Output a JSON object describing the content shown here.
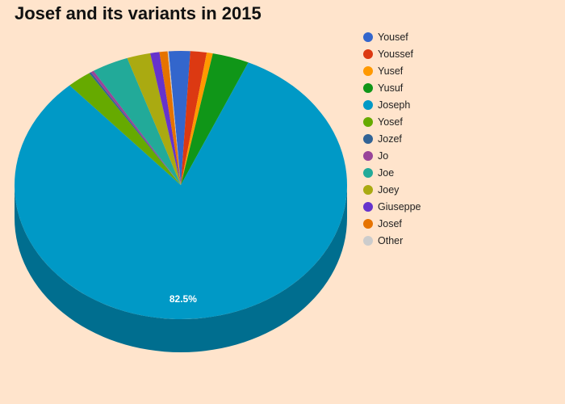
{
  "chart_data": {
    "type": "pie",
    "title": "Josef and its variants in 2015",
    "labels": [
      "Yousef",
      "Youssef",
      "Yusef",
      "Yusuf",
      "Joseph",
      "Yosef",
      "Jozef",
      "Jo",
      "Joe",
      "Joey",
      "Giuseppe",
      "Josef",
      "Other"
    ],
    "values": [
      2.1,
      1.6,
      0.6,
      3.6,
      82.5,
      2.4,
      0.2,
      0.3,
      3.6,
      2.3,
      0.9,
      0.8,
      0.1
    ],
    "colors": [
      "#3366CC",
      "#DC3912",
      "#FF9900",
      "#109618",
      "#0099C6",
      "#66AA00",
      "#316395",
      "#994499",
      "#22AA99",
      "#AAAA11",
      "#6633CC",
      "#E67300",
      "#CCCCCC"
    ],
    "data_labels": [
      {
        "series": "Joseph",
        "text": "82.5%"
      }
    ],
    "legend_position": "right",
    "style": "3d"
  }
}
